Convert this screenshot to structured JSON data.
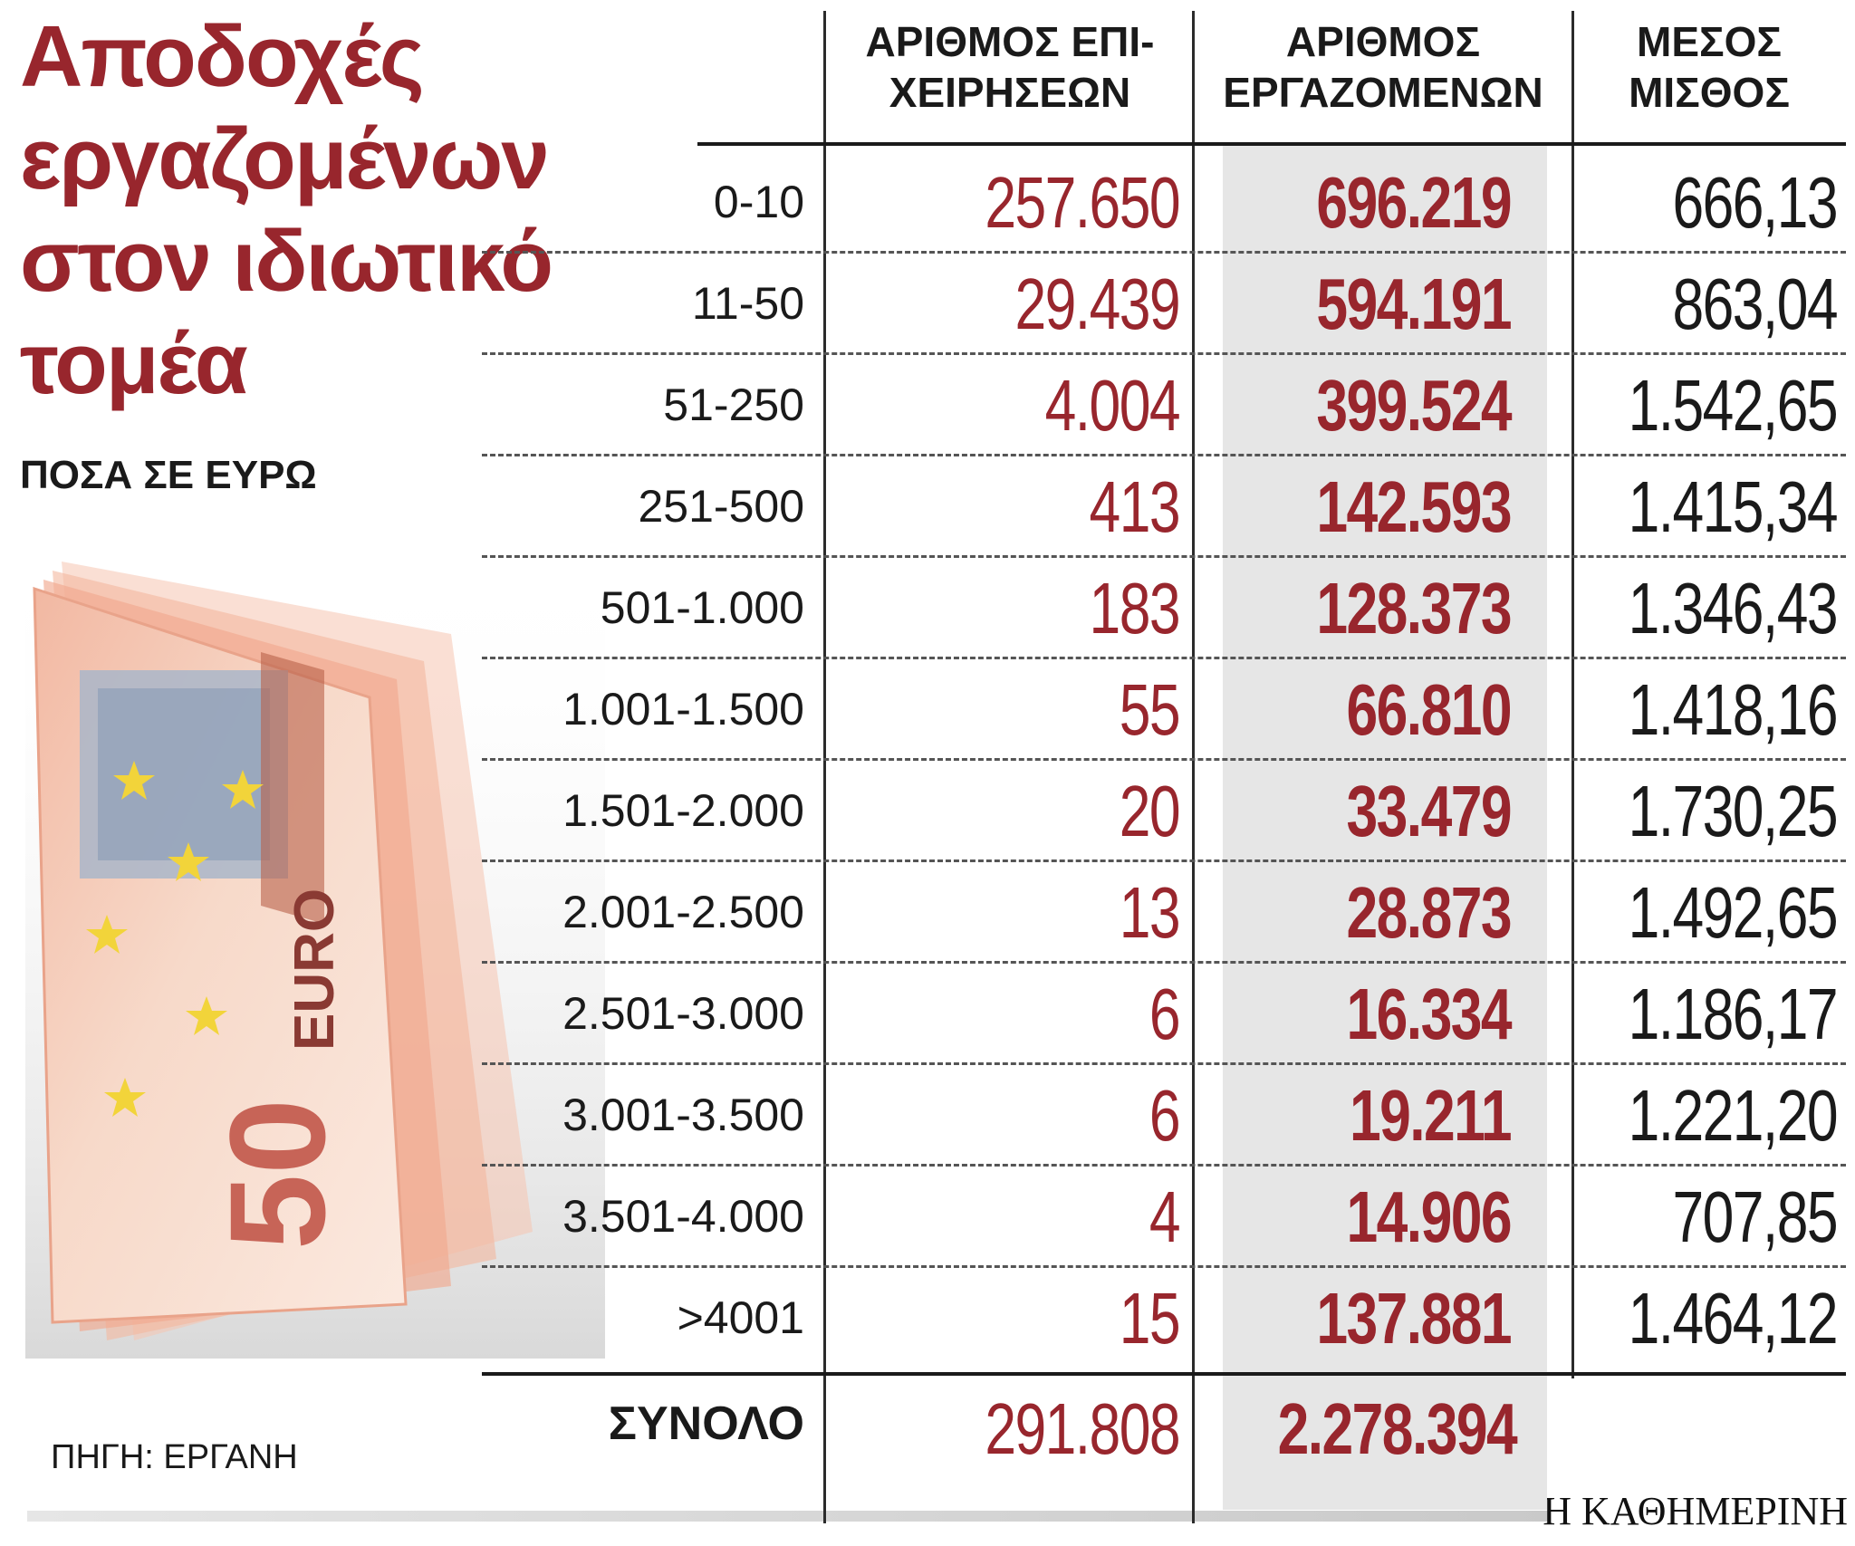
{
  "title_lines": [
    "Αποδοχές",
    "εργαζομένων",
    "στον ιδιωτικό",
    "τομέα"
  ],
  "subtitle": "ΠΟΣΑ ΣΕ ΕΥΡΩ",
  "source": "ΠΗΓΗ: ΕΡΓΑΝΗ",
  "brand": "Η ΚΑΘΗΜΕΡΙΝΗ",
  "banknote_text": {
    "denomination": "50",
    "currency": "EURO"
  },
  "colors": {
    "accent": "#98262d",
    "text": "#1a1a1a",
    "shade": "#e6e6e6"
  },
  "chart_data": {
    "type": "table",
    "columns": [
      {
        "lines": [
          "ΑΡΙΘΜΟΣ ΕΠΙ-",
          "ΧΕΙΡΗΣΕΩΝ"
        ]
      },
      {
        "lines": [
          "ΑΡΙΘΜΟΣ",
          "ΕΡΓΑΖΟΜΕΝΩΝ"
        ]
      },
      {
        "lines": [
          "ΜΕΣΟΣ",
          "ΜΙΣΘΟΣ"
        ]
      }
    ],
    "rows": [
      {
        "label": "0-10",
        "businesses": "257.650",
        "employees": "696.219",
        "avg_salary": "666,13"
      },
      {
        "label": "11-50",
        "businesses": "29.439",
        "employees": "594.191",
        "avg_salary": "863,04"
      },
      {
        "label": "51-250",
        "businesses": "4.004",
        "employees": "399.524",
        "avg_salary": "1.542,65"
      },
      {
        "label": "251-500",
        "businesses": "413",
        "employees": "142.593",
        "avg_salary": "1.415,34"
      },
      {
        "label": "501-1.000",
        "businesses": "183",
        "employees": "128.373",
        "avg_salary": "1.346,43"
      },
      {
        "label": "1.001-1.500",
        "businesses": "55",
        "employees": "66.810",
        "avg_salary": "1.418,16"
      },
      {
        "label": "1.501-2.000",
        "businesses": "20",
        "employees": "33.479",
        "avg_salary": "1.730,25"
      },
      {
        "label": "2.001-2.500",
        "businesses": "13",
        "employees": "28.873",
        "avg_salary": "1.492,65"
      },
      {
        "label": "2.501-3.000",
        "businesses": "6",
        "employees": "16.334",
        "avg_salary": "1.186,17"
      },
      {
        "label": "3.001-3.500",
        "businesses": "6",
        "employees": "19.211",
        "avg_salary": "1.221,20"
      },
      {
        "label": "3.501-4.000",
        "businesses": "4",
        "employees": "14.906",
        "avg_salary": "707,85"
      },
      {
        "label": ">4001",
        "businesses": "15",
        "employees": "137.881",
        "avg_salary": "1.464,12"
      }
    ],
    "total": {
      "label": "ΣΥΝΟΛΟ",
      "businesses": "291.808",
      "employees": "2.278.394"
    }
  }
}
